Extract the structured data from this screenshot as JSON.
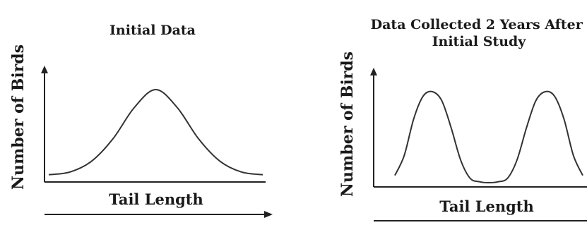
{
  "colors": {
    "curve": "#333333",
    "axis": "#222222",
    "text": "#1a1a1a",
    "background": "#ffffff"
  },
  "chart_data": [
    {
      "type": "line",
      "title": "Initial Data",
      "xlabel": "Tail Length",
      "ylabel": "Number of Birds",
      "grid": false,
      "legend": "none",
      "x": [
        0,
        1,
        2,
        3,
        4,
        5,
        6,
        7,
        8,
        9,
        10
      ],
      "series": [
        {
          "values": [
            0.05,
            0.08,
            0.2,
            0.45,
            0.8,
            1.0,
            0.8,
            0.45,
            0.2,
            0.08,
            0.05
          ]
        }
      ],
      "xlim": [
        0,
        10
      ],
      "ylim": [
        0,
        1.05
      ]
    },
    {
      "type": "line",
      "title": "Data Collected 2 Years After Initial Study",
      "xlabel": "Tail Length",
      "ylabel": "Number of Birds",
      "grid": false,
      "legend": "none",
      "x": [
        0,
        0.5,
        1,
        1.5,
        2,
        2.5,
        3,
        3.5,
        4,
        4.5,
        5,
        5.5,
        6,
        6.5,
        7,
        7.5,
        8,
        8.5,
        9,
        9.5,
        10
      ],
      "series": [
        {
          "values": [
            0.08,
            0.3,
            0.7,
            0.95,
            1.0,
            0.9,
            0.6,
            0.25,
            0.05,
            0.01,
            0.0,
            0.01,
            0.05,
            0.25,
            0.6,
            0.9,
            1.0,
            0.95,
            0.7,
            0.3,
            0.08
          ]
        }
      ],
      "xlim": [
        0,
        10
      ],
      "ylim": [
        0,
        1.05
      ]
    }
  ]
}
